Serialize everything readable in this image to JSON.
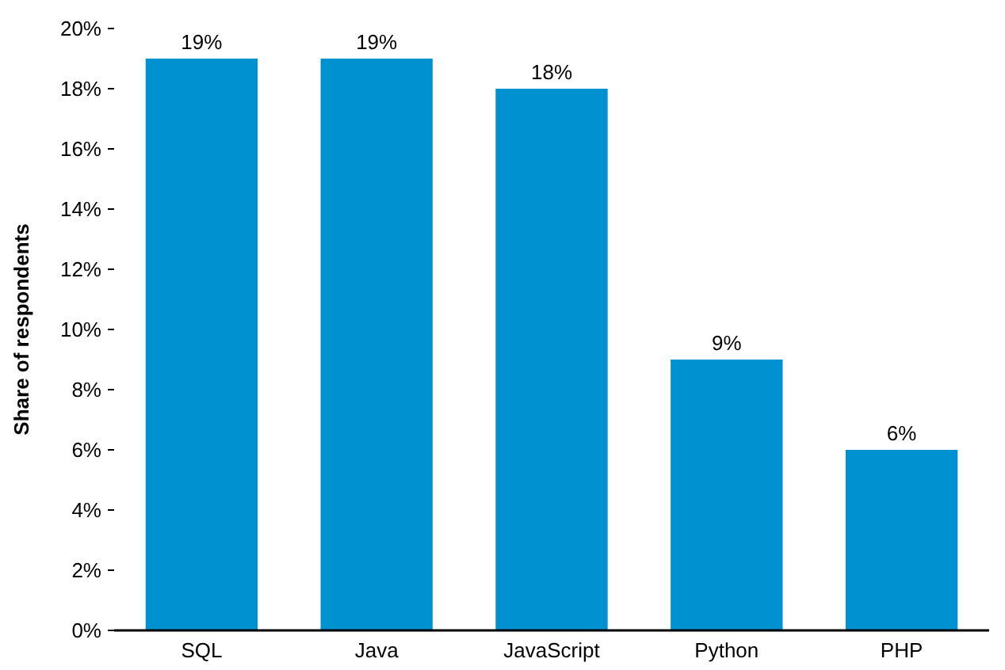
{
  "chart_data": {
    "type": "bar",
    "ylabel": "Share of respondents",
    "categories": [
      "SQL",
      "Java",
      "JavaScript",
      "Python",
      "PHP"
    ],
    "values": [
      19,
      19,
      18,
      9,
      6
    ],
    "value_labels": [
      "19%",
      "19%",
      "18%",
      "9%",
      "6%"
    ],
    "color": "#0092d0",
    "ylim": [
      0,
      20
    ],
    "yticks": [
      {
        "value": 0,
        "label": "0%"
      },
      {
        "value": 2,
        "label": "2%"
      },
      {
        "value": 4,
        "label": "4%"
      },
      {
        "value": 6,
        "label": "6%"
      },
      {
        "value": 8,
        "label": "8%"
      },
      {
        "value": 10,
        "label": "10%"
      },
      {
        "value": 12,
        "label": "12%"
      },
      {
        "value": 14,
        "label": "14%"
      },
      {
        "value": 16,
        "label": "16%"
      },
      {
        "value": 18,
        "label": "18%"
      },
      {
        "value": 20,
        "label": "20%"
      }
    ],
    "grid": false
  }
}
